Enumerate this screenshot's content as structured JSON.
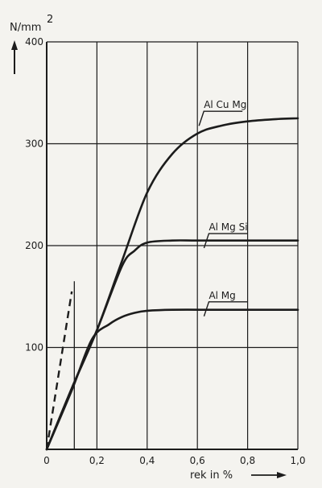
{
  "chart_data": {
    "type": "line",
    "title": "",
    "ylabel": "N/mm",
    "ylabel_superscript": "2",
    "xlabel": "rek in %",
    "xlim": [
      0,
      1.0
    ],
    "ylim": [
      0,
      400
    ],
    "x_ticks": [
      {
        "value": 0,
        "label": "0"
      },
      {
        "value": 0.2,
        "label": "0,2"
      },
      {
        "value": 0.4,
        "label": "0,4"
      },
      {
        "value": 0.6,
        "label": "0,6"
      },
      {
        "value": 0.8,
        "label": "0,8"
      },
      {
        "value": 1.0,
        "label": "1,0"
      }
    ],
    "y_ticks": [
      {
        "value": 100,
        "label": "100"
      },
      {
        "value": 200,
        "label": "200"
      },
      {
        "value": 300,
        "label": "300"
      },
      {
        "value": 400,
        "label": "400"
      }
    ],
    "grid": true,
    "colors": {
      "ink": "#1c1c1c",
      "paper": "#f4f3ef"
    },
    "series": [
      {
        "name": "Al Cu Mg",
        "label_at": [
          0.6,
          335
        ],
        "points": [
          [
            0,
            0
          ],
          [
            0.1,
            60
          ],
          [
            0.2,
            117
          ],
          [
            0.3,
            185
          ],
          [
            0.4,
            252
          ],
          [
            0.5,
            290
          ],
          [
            0.6,
            310
          ],
          [
            0.7,
            318
          ],
          [
            0.8,
            322
          ],
          [
            0.9,
            324
          ],
          [
            1.0,
            325
          ]
        ]
      },
      {
        "name": "Al Mg Si",
        "label_at": [
          0.62,
          215
        ],
        "points": [
          [
            0,
            0
          ],
          [
            0.1,
            60
          ],
          [
            0.2,
            117
          ],
          [
            0.3,
            180
          ],
          [
            0.35,
            195
          ],
          [
            0.4,
            203
          ],
          [
            0.5,
            205
          ],
          [
            0.6,
            205
          ],
          [
            0.8,
            205
          ],
          [
            1.0,
            205
          ]
        ]
      },
      {
        "name": "Al Mg",
        "label_at": [
          0.62,
          148
        ],
        "points": [
          [
            0,
            0
          ],
          [
            0.1,
            58
          ],
          [
            0.18,
            108
          ],
          [
            0.25,
            123
          ],
          [
            0.3,
            130
          ],
          [
            0.35,
            134
          ],
          [
            0.4,
            136
          ],
          [
            0.5,
            137
          ],
          [
            0.7,
            137
          ],
          [
            1.0,
            137
          ]
        ]
      }
    ],
    "dashed_line": {
      "points": [
        [
          0,
          0
        ],
        [
          0.1,
          155
        ]
      ]
    },
    "marker_line": {
      "x": 0.11,
      "y_range": [
        0,
        165
      ]
    }
  }
}
